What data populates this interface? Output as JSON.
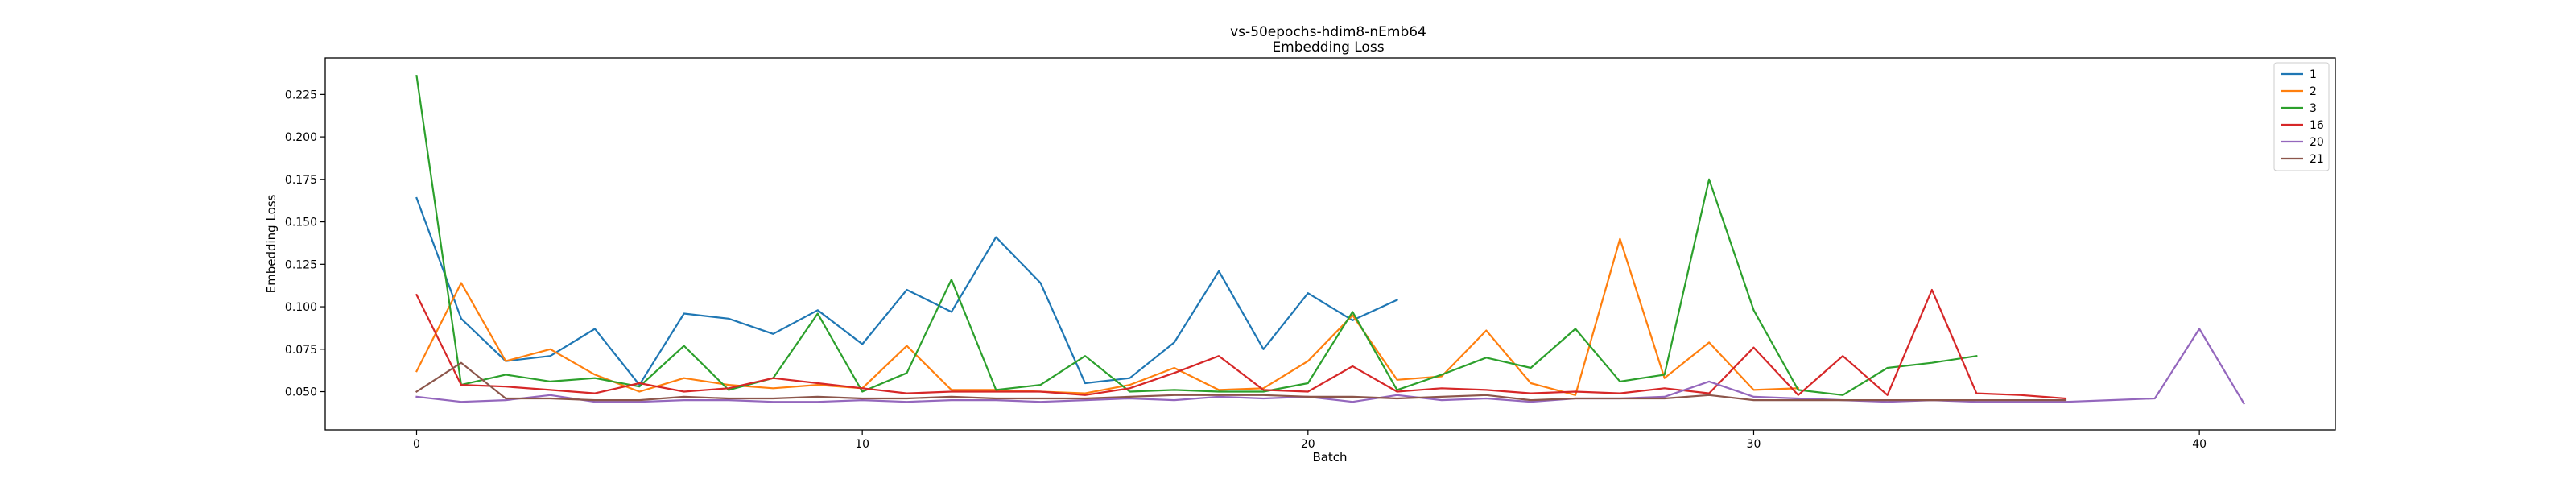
{
  "chart_data": {
    "type": "line",
    "title": "vs-50epochs-hdim8-nEmb64",
    "subtitle": "Embedding Loss",
    "xlabel": "Batch",
    "ylabel": "Embedding Loss",
    "xlim": [
      -2.05,
      43.05
    ],
    "ylim": [
      0.0275,
      0.2465
    ],
    "xticks": [
      0,
      10,
      20,
      30,
      40
    ],
    "yticks": [
      0.05,
      0.075,
      0.1,
      0.125,
      0.15,
      0.175,
      0.2,
      0.225
    ],
    "ytick_labels": [
      "0.050",
      "0.075",
      "0.100",
      "0.125",
      "0.150",
      "0.175",
      "0.200",
      "0.225"
    ],
    "grid": false,
    "legend": "top-right",
    "series": [
      {
        "name": "1",
        "color": "#1f77b4",
        "x": [
          0,
          1,
          2,
          3,
          4,
          5,
          6,
          7,
          8,
          9,
          10,
          11,
          12,
          13,
          14,
          15,
          16,
          17,
          18,
          19,
          20,
          21,
          22
        ],
        "y": [
          0.164,
          0.093,
          0.068,
          0.071,
          0.087,
          0.054,
          0.096,
          0.093,
          0.084,
          0.098,
          0.078,
          0.11,
          0.097,
          0.141,
          0.114,
          0.055,
          0.058,
          0.079,
          0.121,
          0.075,
          0.108,
          0.092,
          0.104
        ]
      },
      {
        "name": "2",
        "color": "#ff7f0e",
        "x": [
          0,
          1,
          2,
          3,
          4,
          5,
          6,
          7,
          8,
          9,
          10,
          11,
          12,
          13,
          14,
          15,
          16,
          17,
          18,
          19,
          20,
          21,
          22,
          23,
          24,
          25,
          26,
          27,
          28,
          29,
          30,
          31
        ],
        "y": [
          0.062,
          0.114,
          0.068,
          0.075,
          0.06,
          0.05,
          0.058,
          0.054,
          0.052,
          0.054,
          0.052,
          0.077,
          0.051,
          0.051,
          0.05,
          0.049,
          0.054,
          0.064,
          0.051,
          0.052,
          0.068,
          0.095,
          0.057,
          0.059,
          0.086,
          0.055,
          0.048,
          0.14,
          0.058,
          0.079,
          0.051,
          0.052
        ]
      },
      {
        "name": "3",
        "color": "#2ca02c",
        "x": [
          0,
          1,
          2,
          3,
          4,
          5,
          6,
          7,
          8,
          9,
          10,
          11,
          12,
          13,
          14,
          15,
          16,
          17,
          18,
          19,
          20,
          21,
          22,
          23,
          24,
          25,
          26,
          27,
          28,
          29,
          30,
          31,
          32,
          33,
          34,
          35
        ],
        "y": [
          0.236,
          0.054,
          0.06,
          0.056,
          0.058,
          0.053,
          0.077,
          0.051,
          0.058,
          0.096,
          0.05,
          0.061,
          0.116,
          0.051,
          0.054,
          0.071,
          0.05,
          0.051,
          0.05,
          0.05,
          0.055,
          0.097,
          0.051,
          0.06,
          0.07,
          0.064,
          0.087,
          0.056,
          0.06,
          0.175,
          0.098,
          0.051,
          0.048,
          0.064,
          0.067,
          0.071
        ]
      },
      {
        "name": "16",
        "color": "#d62728",
        "x": [
          0,
          1,
          2,
          3,
          4,
          5,
          6,
          7,
          8,
          9,
          10,
          11,
          12,
          13,
          14,
          15,
          16,
          17,
          18,
          19,
          20,
          21,
          22,
          23,
          24,
          25,
          26,
          27,
          28,
          29,
          30,
          31,
          32,
          33,
          34,
          35,
          36,
          37
        ],
        "y": [
          0.107,
          0.054,
          0.053,
          0.051,
          0.049,
          0.055,
          0.05,
          0.052,
          0.058,
          0.055,
          0.052,
          0.049,
          0.05,
          0.05,
          0.05,
          0.048,
          0.052,
          0.061,
          0.071,
          0.051,
          0.05,
          0.065,
          0.05,
          0.052,
          0.051,
          0.049,
          0.05,
          0.049,
          0.052,
          0.049,
          0.076,
          0.048,
          0.071,
          0.048,
          0.11,
          0.049,
          0.048,
          0.046
        ]
      },
      {
        "name": "20",
        "color": "#9467bd",
        "x": [
          0,
          1,
          2,
          3,
          4,
          5,
          6,
          7,
          8,
          9,
          10,
          11,
          12,
          13,
          14,
          15,
          16,
          17,
          18,
          19,
          20,
          21,
          22,
          23,
          24,
          25,
          26,
          27,
          28,
          29,
          30,
          31,
          32,
          33,
          34,
          35,
          36,
          37,
          38,
          39,
          40,
          41
        ],
        "y": [
          0.047,
          0.044,
          0.045,
          0.048,
          0.044,
          0.044,
          0.045,
          0.045,
          0.044,
          0.044,
          0.045,
          0.044,
          0.045,
          0.045,
          0.044,
          0.045,
          0.046,
          0.045,
          0.047,
          0.046,
          0.047,
          0.044,
          0.048,
          0.045,
          0.046,
          0.044,
          0.046,
          0.046,
          0.047,
          0.056,
          0.047,
          0.046,
          0.045,
          0.044,
          0.045,
          0.044,
          0.044,
          0.044,
          0.045,
          0.046,
          0.087,
          0.043
        ]
      },
      {
        "name": "21",
        "color": "#8c564b",
        "x": [
          0,
          1,
          2,
          3,
          4,
          5,
          6,
          7,
          8,
          9,
          10,
          11,
          12,
          13,
          14,
          15,
          16,
          17,
          18,
          19,
          20,
          21,
          22,
          23,
          24,
          25,
          26,
          27,
          28,
          29,
          30,
          31,
          32,
          33,
          34,
          35,
          36,
          37
        ],
        "y": [
          0.05,
          0.067,
          0.046,
          0.046,
          0.045,
          0.045,
          0.047,
          0.046,
          0.046,
          0.047,
          0.046,
          0.046,
          0.047,
          0.046,
          0.046,
          0.046,
          0.047,
          0.048,
          0.048,
          0.048,
          0.047,
          0.047,
          0.046,
          0.047,
          0.048,
          0.045,
          0.046,
          0.046,
          0.046,
          0.048,
          0.045,
          0.045,
          0.045,
          0.045,
          0.045,
          0.045,
          0.045,
          0.045
        ]
      }
    ]
  }
}
